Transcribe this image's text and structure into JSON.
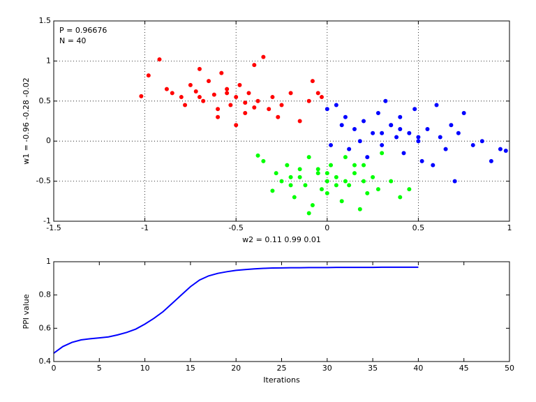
{
  "chart_data": [
    {
      "type": "scatter",
      "annotations": [
        "P = 0.96676",
        "N = 40"
      ],
      "x_label": "w2 = 0.11  0.99  0.01",
      "y_label": "w1 = -0.96  -0.28  -0.02",
      "xlim": [
        -1.5,
        1
      ],
      "xticks": [
        -1.5,
        -1,
        -0.5,
        0,
        0.5,
        1
      ],
      "ylim": [
        -1,
        1.5
      ],
      "yticks": [
        -1,
        -0.5,
        0,
        0.5,
        1,
        1.5
      ],
      "grid": true,
      "series": [
        {
          "color": "#ff0000",
          "x": [
            -1.02,
            -0.98,
            -0.92,
            -0.88,
            -0.85,
            -0.8,
            -0.78,
            -0.75,
            -0.72,
            -0.7,
            -0.68,
            -0.65,
            -0.62,
            -0.6,
            -0.58,
            -0.55,
            -0.53,
            -0.5,
            -0.48,
            -0.45,
            -0.43,
            -0.4,
            -0.38,
            -0.35,
            -0.32,
            -0.3,
            -0.27,
            -0.25,
            -0.2,
            -0.15,
            -0.1,
            -0.08,
            -0.05,
            -0.03,
            -0.6,
            -0.55,
            -0.45,
            -0.7,
            -0.4,
            -0.5
          ],
          "values": [
            0.56,
            0.82,
            1.02,
            0.65,
            0.6,
            0.55,
            0.45,
            0.7,
            0.62,
            0.9,
            0.5,
            0.75,
            0.58,
            0.4,
            0.85,
            0.65,
            0.45,
            0.55,
            0.7,
            0.35,
            0.6,
            0.95,
            0.5,
            1.05,
            0.4,
            0.55,
            0.3,
            0.45,
            0.6,
            0.25,
            0.5,
            0.75,
            0.6,
            0.55,
            0.3,
            0.6,
            0.48,
            0.55,
            0.42,
            0.2
          ]
        },
        {
          "color": "#0000ff",
          "x": [
            0.0,
            0.02,
            0.05,
            0.08,
            0.1,
            0.12,
            0.15,
            0.18,
            0.2,
            0.22,
            0.25,
            0.28,
            0.3,
            0.32,
            0.35,
            0.38,
            0.4,
            0.42,
            0.45,
            0.48,
            0.5,
            0.52,
            0.55,
            0.58,
            0.6,
            0.62,
            0.65,
            0.68,
            0.7,
            0.72,
            0.75,
            0.8,
            0.85,
            0.9,
            0.95,
            0.98,
            0.3,
            0.4,
            0.5,
            0.35
          ],
          "values": [
            0.4,
            -0.05,
            0.45,
            0.2,
            0.3,
            -0.1,
            0.15,
            0.0,
            0.25,
            -0.2,
            0.1,
            0.35,
            -0.05,
            0.5,
            0.2,
            0.05,
            0.3,
            -0.15,
            0.1,
            0.4,
            0.0,
            -0.25,
            0.15,
            -0.3,
            0.45,
            0.05,
            -0.1,
            0.2,
            -0.5,
            0.1,
            0.35,
            -0.05,
            0.0,
            -0.25,
            -0.1,
            -0.12,
            0.1,
            0.15,
            0.05,
            0.2
          ]
        },
        {
          "color": "#00ff00",
          "x": [
            -0.38,
            -0.35,
            -0.3,
            -0.28,
            -0.25,
            -0.22,
            -0.2,
            -0.18,
            -0.15,
            -0.12,
            -0.1,
            -0.08,
            -0.05,
            -0.03,
            0.0,
            0.02,
            0.05,
            0.08,
            0.1,
            0.12,
            0.15,
            0.18,
            0.2,
            0.22,
            0.25,
            0.28,
            0.3,
            0.35,
            0.4,
            0.45,
            -0.1,
            0.0,
            0.05,
            -0.05,
            0.1,
            -0.15,
            0.2,
            0.0,
            -0.2,
            0.15
          ],
          "values": [
            -0.18,
            -0.25,
            -0.62,
            -0.4,
            -0.5,
            -0.3,
            -0.45,
            -0.7,
            -0.35,
            -0.55,
            -0.2,
            -0.8,
            -0.4,
            -0.6,
            -0.5,
            -0.3,
            -0.45,
            -0.75,
            -0.2,
            -0.55,
            -0.4,
            -0.85,
            -0.3,
            -0.65,
            -0.45,
            -0.6,
            -0.15,
            -0.5,
            -0.7,
            -0.6,
            -0.9,
            -0.4,
            -0.55,
            -0.35,
            -0.5,
            -0.45,
            -0.5,
            -0.65,
            -0.55,
            -0.3
          ]
        }
      ]
    },
    {
      "type": "line",
      "x_label": "Iterations",
      "y_label": "PPI value",
      "xlim": [
        0,
        50
      ],
      "xticks": [
        0,
        5,
        10,
        15,
        20,
        25,
        30,
        35,
        40,
        45,
        50
      ],
      "ylim": [
        0.4,
        1
      ],
      "yticks": [
        0.4,
        0.6,
        0.8,
        1
      ],
      "grid": false,
      "x": [
        0,
        1,
        2,
        3,
        4,
        5,
        6,
        7,
        8,
        9,
        10,
        11,
        12,
        13,
        14,
        15,
        16,
        17,
        18,
        19,
        20,
        21,
        22,
        23,
        24,
        25,
        26,
        27,
        28,
        29,
        30,
        31,
        32,
        33,
        34,
        35,
        36,
        37,
        38,
        39,
        40
      ],
      "series": [
        {
          "color": "#0000ff",
          "values": [
            0.45,
            0.49,
            0.515,
            0.53,
            0.537,
            0.542,
            0.548,
            0.56,
            0.575,
            0.595,
            0.625,
            0.66,
            0.7,
            0.75,
            0.8,
            0.85,
            0.89,
            0.915,
            0.93,
            0.94,
            0.948,
            0.953,
            0.957,
            0.96,
            0.962,
            0.963,
            0.964,
            0.964,
            0.965,
            0.965,
            0.965,
            0.966,
            0.966,
            0.966,
            0.966,
            0.966,
            0.967,
            0.967,
            0.967,
            0.967,
            0.967
          ]
        }
      ]
    }
  ]
}
